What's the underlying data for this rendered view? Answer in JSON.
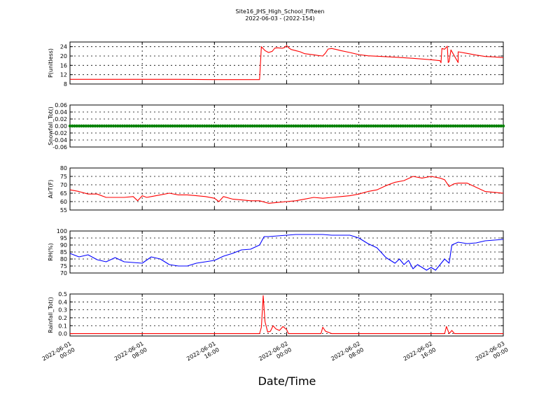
{
  "figure": {
    "title_line1": "Site16_JHS_High_School_Fifteen",
    "title_line2": "2022-06-03 - (2022-154)",
    "xlabel": "Date/Time"
  },
  "chart_data": {
    "type": "line",
    "grid": true,
    "x_start": "2022-06-01 00:00",
    "x_end": "2022-06-03 00:00",
    "x_ticks": [
      {
        "l1": "2022-06-01",
        "l2": "00:00",
        "h": 0
      },
      {
        "l1": "2022-06-01",
        "l2": "08:00",
        "h": 8
      },
      {
        "l1": "2022-06-01",
        "l2": "16:00",
        "h": 16
      },
      {
        "l1": "2022-06-02",
        "l2": "00:00",
        "h": 24
      },
      {
        "l1": "2022-06-02",
        "l2": "08:00",
        "h": 32
      },
      {
        "l1": "2022-06-02",
        "l2": "16:00",
        "h": 40
      },
      {
        "l1": "2022-06-03",
        "l2": "00:00",
        "h": 48
      }
    ],
    "panels": [
      {
        "ylabel": "P(unitless)",
        "ylim": [
          8,
          26
        ],
        "yticks": [
          8,
          12,
          16,
          20,
          24
        ],
        "color": "#ff0000",
        "style": "line",
        "points": [
          [
            0,
            10
          ],
          [
            4,
            10
          ],
          [
            8,
            10
          ],
          [
            12,
            10
          ],
          [
            16,
            9.9
          ],
          [
            20,
            9.9
          ],
          [
            21,
            9.9
          ],
          [
            21.2,
            24
          ],
          [
            21.6,
            22.3
          ],
          [
            22,
            21.5
          ],
          [
            22.4,
            22
          ],
          [
            22.7,
            23.4
          ],
          [
            23,
            23.5
          ],
          [
            23.5,
            23.3
          ],
          [
            23.8,
            23.7
          ],
          [
            24,
            24.5
          ],
          [
            24.2,
            23.6
          ],
          [
            24.5,
            22.8
          ],
          [
            25,
            22.3
          ],
          [
            25.5,
            21.8
          ],
          [
            26,
            21
          ],
          [
            27,
            20.5
          ],
          [
            27.5,
            20.2
          ],
          [
            28,
            20
          ],
          [
            28.3,
            21.3
          ],
          [
            28.6,
            23
          ],
          [
            29,
            23.2
          ],
          [
            29.5,
            22.8
          ],
          [
            30,
            22.3
          ],
          [
            31,
            21.5
          ],
          [
            32,
            20.6
          ],
          [
            33,
            20.1
          ],
          [
            34,
            19.9
          ],
          [
            36,
            19.5
          ],
          [
            38,
            19
          ],
          [
            40,
            18.4
          ],
          [
            41,
            18
          ],
          [
            42,
            17.6
          ],
          [
            43,
            17.2
          ],
          [
            41.9,
            17.2
          ],
          [
            41.1,
            17.1
          ],
          [
            41.2,
            23.2
          ],
          [
            41.5,
            22.9
          ],
          [
            41.8,
            24.2
          ],
          [
            42.2,
            22.6
          ],
          [
            43,
            21.8
          ],
          [
            44,
            21.1
          ],
          [
            45,
            20.4
          ],
          [
            46,
            19.8
          ],
          [
            47,
            19.6
          ],
          [
            48,
            19.3
          ]
        ]
      },
      {
        "ylabel": "Snowfall_Tot()",
        "ylim": [
          -0.06,
          0.06
        ],
        "yticks": [
          -0.06,
          -0.04,
          -0.02,
          0.0,
          0.02,
          0.04,
          0.06
        ],
        "color": "#008000",
        "style": "dots",
        "points": [
          [
            0,
            0
          ],
          [
            48,
            0
          ]
        ]
      },
      {
        "ylabel": "AirT(F)",
        "ylim": [
          55,
          80
        ],
        "yticks": [
          55,
          60,
          65,
          70,
          75,
          80
        ],
        "color": "#ff0000",
        "style": "line",
        "points": [
          [
            0,
            67
          ],
          [
            1,
            66
          ],
          [
            2,
            64.5
          ],
          [
            3,
            64.5
          ],
          [
            4,
            62.5
          ],
          [
            5,
            62.5
          ],
          [
            6,
            62.5
          ],
          [
            7,
            63
          ],
          [
            7.5,
            60.5
          ],
          [
            8,
            63.5
          ],
          [
            8.5,
            62.5
          ],
          [
            9,
            63
          ],
          [
            10,
            64
          ],
          [
            11,
            65
          ],
          [
            12,
            64
          ],
          [
            13,
            64
          ],
          [
            14,
            63.5
          ],
          [
            15,
            63
          ],
          [
            16,
            62
          ],
          [
            16.5,
            60
          ],
          [
            17,
            63
          ],
          [
            18,
            61.5
          ],
          [
            19,
            61
          ],
          [
            20,
            60.5
          ],
          [
            21,
            60.5
          ],
          [
            22,
            59
          ],
          [
            23,
            59.5
          ],
          [
            24,
            60
          ],
          [
            25,
            60.5
          ],
          [
            26,
            61.5
          ],
          [
            27,
            62.5
          ],
          [
            28,
            62
          ],
          [
            29,
            62.5
          ],
          [
            30,
            63
          ],
          [
            31,
            63.5
          ],
          [
            32,
            64.5
          ],
          [
            33,
            66
          ],
          [
            34,
            67
          ],
          [
            35,
            69.5
          ],
          [
            36,
            71.5
          ],
          [
            37,
            72.5
          ],
          [
            38,
            75
          ],
          [
            39,
            74
          ],
          [
            40,
            75
          ],
          [
            41,
            74
          ],
          [
            41.5,
            73
          ],
          [
            42,
            69
          ],
          [
            42.5,
            70.5
          ],
          [
            43,
            71
          ],
          [
            44,
            71
          ],
          [
            45,
            68.5
          ],
          [
            46,
            66
          ],
          [
            47,
            65.5
          ],
          [
            48,
            65
          ]
        ]
      },
      {
        "ylabel": "RH(%)",
        "ylim": [
          70,
          100
        ],
        "yticks": [
          70,
          75,
          80,
          85,
          90,
          95,
          100
        ],
        "color": "#0000ff",
        "style": "line",
        "points": [
          [
            0,
            84
          ],
          [
            1,
            81.5
          ],
          [
            2,
            83
          ],
          [
            3,
            79.5
          ],
          [
            4,
            78
          ],
          [
            5,
            81
          ],
          [
            6,
            78
          ],
          [
            7,
            77.5
          ],
          [
            8,
            77
          ],
          [
            9,
            81.5
          ],
          [
            10,
            80
          ],
          [
            11,
            76
          ],
          [
            12,
            75
          ],
          [
            13,
            75
          ],
          [
            14,
            77
          ],
          [
            15,
            78
          ],
          [
            16,
            79
          ],
          [
            17,
            82
          ],
          [
            18,
            84
          ],
          [
            19,
            86.5
          ],
          [
            20,
            87
          ],
          [
            21,
            90
          ],
          [
            21.5,
            96
          ],
          [
            22,
            96
          ],
          [
            23,
            96.5
          ],
          [
            24,
            97
          ],
          [
            25,
            97.5
          ],
          [
            26,
            97.5
          ],
          [
            27,
            97.5
          ],
          [
            28,
            97.5
          ],
          [
            29,
            97
          ],
          [
            30,
            97
          ],
          [
            31,
            97
          ],
          [
            32,
            95
          ],
          [
            33,
            91
          ],
          [
            34,
            88
          ],
          [
            35,
            81
          ],
          [
            36,
            77
          ],
          [
            36.5,
            80
          ],
          [
            37,
            76
          ],
          [
            37.5,
            79
          ],
          [
            38,
            73
          ],
          [
            38.5,
            76
          ],
          [
            39,
            74
          ],
          [
            39.5,
            72
          ],
          [
            40,
            74
          ],
          [
            40.5,
            72
          ],
          [
            41,
            76
          ],
          [
            41.5,
            80
          ],
          [
            42,
            77
          ],
          [
            42.3,
            90
          ],
          [
            43,
            92
          ],
          [
            44,
            91
          ],
          [
            45,
            91.5
          ],
          [
            46,
            93
          ],
          [
            47,
            93.5
          ],
          [
            48,
            94
          ]
        ]
      },
      {
        "ylabel": "Rainfall_Tot()",
        "ylim": [
          -0.03,
          0.5
        ],
        "yticks": [
          0.0,
          0.1,
          0.2,
          0.3,
          0.4,
          0.5
        ],
        "color": "#ff0000",
        "style": "line",
        "points": [
          [
            0,
            0
          ],
          [
            20,
            0
          ],
          [
            21,
            0
          ],
          [
            21.2,
            0.08
          ],
          [
            21.4,
            0.48
          ],
          [
            21.6,
            0.15
          ],
          [
            21.9,
            0.02
          ],
          [
            22.2,
            0.03
          ],
          [
            22.5,
            0.1
          ],
          [
            22.8,
            0.06
          ],
          [
            23.2,
            0.04
          ],
          [
            23.6,
            0.09
          ],
          [
            24,
            0.05
          ],
          [
            24.2,
            0
          ],
          [
            27.8,
            0
          ],
          [
            28,
            0.08
          ],
          [
            28.3,
            0.03
          ],
          [
            29,
            0
          ],
          [
            41,
            0
          ],
          [
            41.5,
            0
          ],
          [
            41.7,
            0.09
          ],
          [
            42,
            0
          ],
          [
            42.3,
            0.04
          ],
          [
            42.6,
            0
          ],
          [
            48,
            0
          ]
        ]
      }
    ]
  }
}
